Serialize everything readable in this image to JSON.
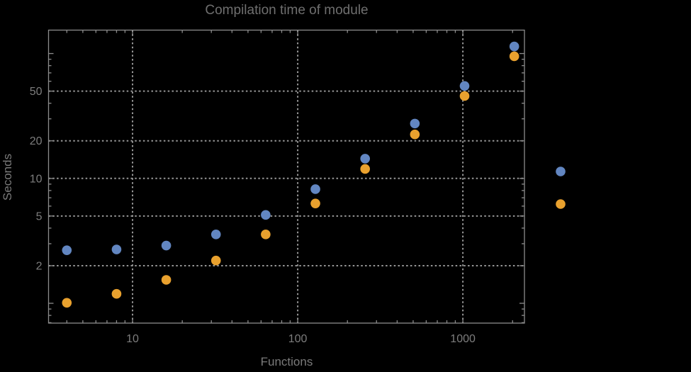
{
  "chart_data": {
    "type": "scatter",
    "title": "Compilation time of module",
    "xlabel": "Functions",
    "ylabel": "Seconds",
    "x_scale": "log",
    "y_scale": "log",
    "grid": "dotted gridlines at labeled major ticks only",
    "legend_position": "right-center, colored markers only (no visible label text)",
    "x_range": [
      3.1,
      2360
    ],
    "y_range": [
      0.694,
      154
    ],
    "x_ticks_labeled": [
      10,
      100,
      1000
    ],
    "y_ticks_labeled": [
      2,
      5,
      10,
      20,
      50
    ],
    "x": [
      4,
      8,
      16,
      32,
      64,
      128,
      256,
      512,
      1024,
      2048
    ],
    "series": [
      {
        "name": "series-1-blue",
        "color": "#6286c1",
        "values": [
          2.66,
          2.7,
          2.9,
          3.56,
          5.1,
          8.2,
          14.4,
          27.5,
          55,
          114
        ]
      },
      {
        "name": "series-2-orange",
        "color": "#e9a12e",
        "values": [
          1.01,
          1.19,
          1.54,
          2.2,
          3.56,
          6.3,
          11.9,
          22.5,
          45.7,
          95
        ]
      }
    ]
  },
  "styles": {
    "background": "#000000",
    "frame_color": "#8c8c8c",
    "grid_color": "#969696",
    "tick_label_color": "#7d7d7d",
    "title_color": "#6f6f6f",
    "axis_label_color": "#7a7a7a",
    "series1_color": "#6286c1",
    "series2_color": "#e9a12e"
  },
  "legend": {
    "markers": [
      {
        "series": "series-1-blue",
        "color": "#6286c1"
      },
      {
        "series": "series-2-orange",
        "color": "#e9a12e"
      }
    ]
  }
}
